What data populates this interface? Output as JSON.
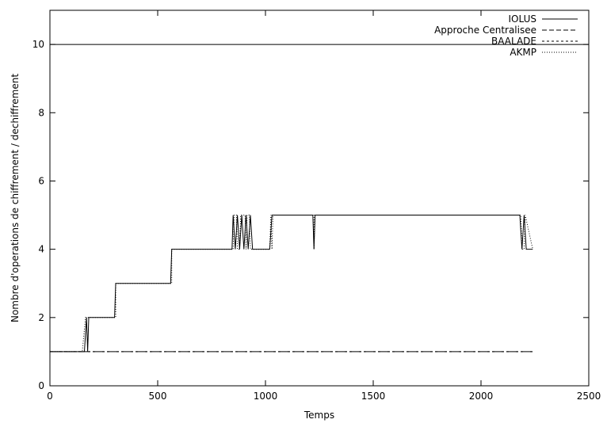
{
  "chart_data": {
    "type": "line",
    "xlabel": "Temps",
    "ylabel": "Nombre d'operations de chiffrement / dechiffrement",
    "xlim": [
      0,
      2500
    ],
    "ylim": [
      0,
      11
    ],
    "xticks": [
      0,
      500,
      1000,
      1500,
      2000,
      2500
    ],
    "yticks": [
      0,
      2,
      4,
      6,
      8,
      10
    ],
    "grid": false,
    "legend_position": "top-right",
    "series": [
      {
        "name": "IOLUS",
        "style": "solid",
        "x": [
          0,
          2500
        ],
        "y": [
          10,
          10
        ]
      },
      {
        "name": "Approche Centralisee",
        "style": "dashed",
        "x": [
          0,
          2240
        ],
        "y": [
          1,
          1
        ]
      },
      {
        "name": "BAALADE",
        "style": "short-dashed",
        "x": [
          0,
          2240
        ],
        "y": [
          1,
          1
        ]
      },
      {
        "name": "AKMP",
        "style": "dotted",
        "x": [
          0,
          150,
          165,
          175,
          305,
          305,
          565,
          565,
          850,
          855,
          865,
          870,
          880,
          885,
          905,
          910,
          915,
          925,
          930,
          935,
          1020,
          1025,
          1030,
          1035,
          1225,
          1225,
          1230,
          2185,
          2190,
          2200,
          2205,
          2240
        ],
        "y": [
          1,
          1,
          2,
          2,
          2,
          3,
          3,
          4,
          4,
          5,
          5,
          4,
          4,
          5,
          5,
          4,
          5,
          5,
          4,
          4,
          4,
          5,
          4,
          5,
          5,
          4,
          5,
          5,
          4,
          4,
          5,
          4
        ]
      },
      {
        "name": "",
        "style": "solid",
        "x": [
          0,
          160,
          170,
          175,
          180,
          300,
          305,
          560,
          565,
          845,
          850,
          860,
          870,
          880,
          890,
          900,
          910,
          920,
          930,
          940,
          1020,
          1030,
          1040,
          1220,
          1225,
          1230,
          2180,
          2190,
          2200,
          2210,
          2240
        ],
        "y": [
          1,
          1,
          2,
          1,
          2,
          2,
          3,
          3,
          4,
          4,
          5,
          4,
          5,
          4,
          5,
          4,
          5,
          4,
          5,
          4,
          4,
          5,
          5,
          5,
          4,
          5,
          5,
          4,
          5,
          4,
          4
        ]
      }
    ]
  }
}
